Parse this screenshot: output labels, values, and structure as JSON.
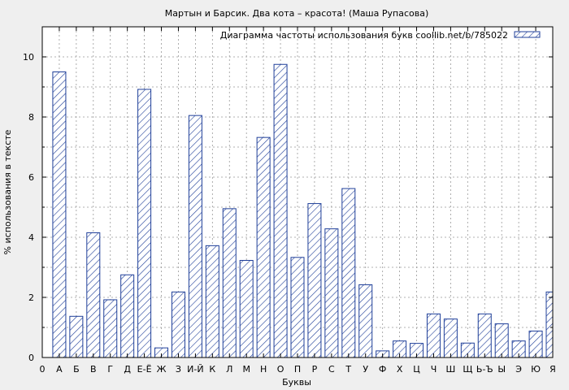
{
  "chart_data": {
    "type": "bar",
    "title": "Мартын и Барсик. Два кота – красота! (Маша Рупасова)",
    "legend": "Диаграмма частоты использования букв coollib.net/b/785022",
    "legend_position": "top-right",
    "xlabel": "Буквы",
    "ylabel": "% использования в тексте",
    "ylim": [
      0,
      11
    ],
    "yticks": [
      0,
      2,
      4,
      6,
      8,
      10
    ],
    "grid": true,
    "categories": [
      "0",
      "А",
      "Б",
      "В",
      "Г",
      "Д",
      "Е-Ё",
      "Ж",
      "З",
      "И-Й",
      "К",
      "Л",
      "М",
      "Н",
      "О",
      "П",
      "Р",
      "С",
      "Т",
      "У",
      "Ф",
      "Х",
      "Ц",
      "Ч",
      "Ш",
      "Щ",
      "Ь-Ъ",
      "Ы",
      "Э",
      "Ю",
      "Я"
    ],
    "values": [
      0,
      9.5,
      1.37,
      4.15,
      1.92,
      2.75,
      8.92,
      0.32,
      2.18,
      8.05,
      3.72,
      4.95,
      3.23,
      7.32,
      9.75,
      3.33,
      5.12,
      4.28,
      5.62,
      2.42,
      0.22,
      0.55,
      0.47,
      1.45,
      1.28,
      0.48,
      1.45,
      1.12,
      0.55,
      0.88,
      2.18
    ],
    "colors": {
      "bar_stroke": "#1f3f99",
      "hatch": "#1f3f99",
      "plot_bg": "#ffffff",
      "page_bg": "#efefef"
    }
  }
}
